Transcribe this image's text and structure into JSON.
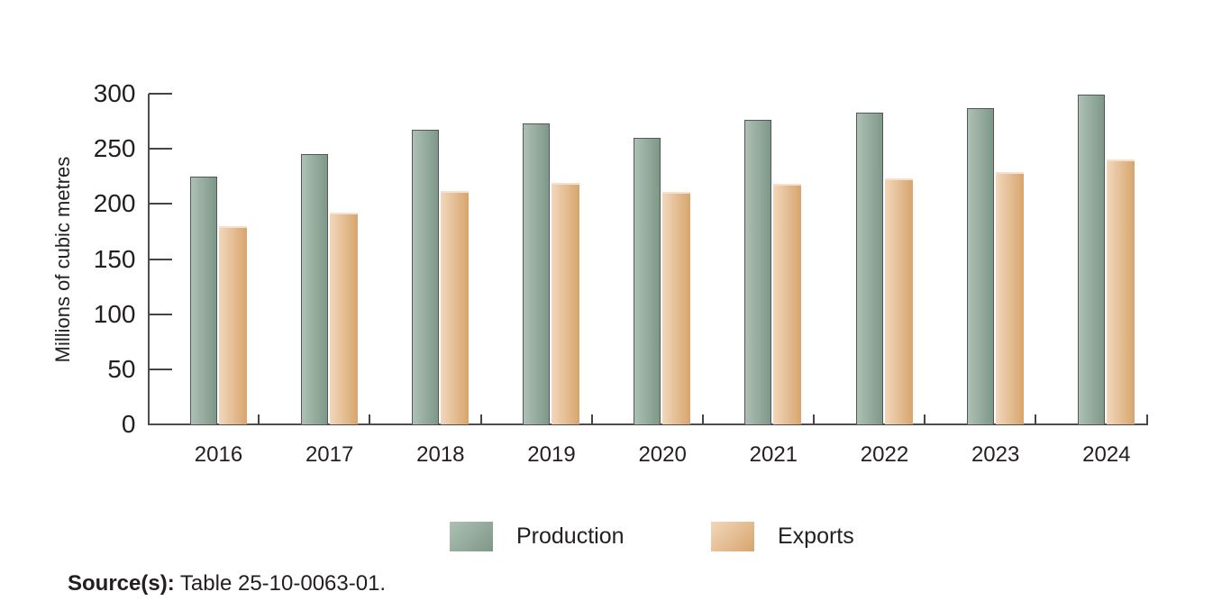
{
  "chart_data": {
    "type": "bar",
    "title": "",
    "xlabel": "",
    "ylabel": "Millions of cubic metres",
    "categories": [
      "2016",
      "2017",
      "2018",
      "2019",
      "2020",
      "2021",
      "2022",
      "2023",
      "2024"
    ],
    "series": [
      {
        "name": "Production",
        "values": [
          225,
          245,
          267,
          273,
          260,
          276,
          283,
          287,
          299
        ],
        "color_light": "#adc0b4",
        "color_dark": "#7e9888"
      },
      {
        "name": "Exports",
        "values": [
          180,
          192,
          212,
          219,
          211,
          218,
          223,
          229,
          240
        ],
        "color_light": "#f2d7bc",
        "color_dark": "#d7a56c"
      }
    ],
    "ylim": [
      0,
      300
    ],
    "y_ticks": [
      0,
      50,
      100,
      150,
      200,
      250,
      300
    ],
    "grid": false,
    "legend_position": "bottom-center",
    "axis_color": "#4d4d4f",
    "text_color": "#231f20"
  },
  "legend": {
    "items": [
      {
        "label": "Production"
      },
      {
        "label": "Exports"
      }
    ]
  },
  "source": {
    "prefix": "Source(s):",
    "text": " Table 25-10-0063-01."
  }
}
